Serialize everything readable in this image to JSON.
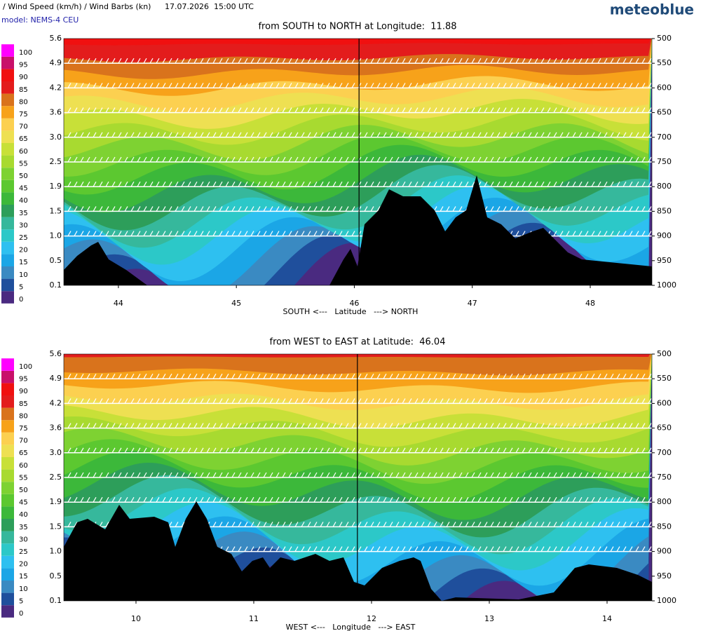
{
  "header": {
    "title": "/ Wind Speed (km/h) / Wind Barbs (kn)",
    "time": "17.07.2026  15:00 UTC",
    "model": "model: NEMS-4 CEU",
    "brand": "meteoblue"
  },
  "chart_data": [
    {
      "type": "contour",
      "title": "from SOUTH to NORTH at Longitude:  11.88",
      "x_label": "SOUTH <---   Latitude   ---> NORTH",
      "xlim": [
        43.537,
        48.523
      ],
      "xticks": [
        44,
        45,
        46,
        47,
        48
      ],
      "cross_line": 46.04,
      "ylim": [
        1000,
        500
      ],
      "yticks": [
        500,
        550,
        600,
        650,
        700,
        750,
        800,
        850,
        900,
        950,
        1000
      ],
      "altitude_labels": [
        "5.6",
        "4.9",
        "4.2",
        "3.6",
        "3.0",
        "2.5",
        "1.9",
        "1.5",
        "1.0",
        "0.5",
        "0.1"
      ],
      "colorbar": {
        "levels": [
          0,
          5,
          10,
          15,
          20,
          25,
          30,
          35,
          40,
          45,
          50,
          55,
          60,
          65,
          70,
          75,
          80,
          85,
          90,
          95,
          100
        ],
        "colors": [
          "#4a2a80",
          "#1f4f9c",
          "#3a8ac2",
          "#1ba6e6",
          "#2ec0f0",
          "#2cc8c8",
          "#36b89c",
          "#2d9e5a",
          "#3cb83a",
          "#5cc830",
          "#7ed232",
          "#a8da30",
          "#c8e038",
          "#eee052",
          "#fcd050",
          "#f7a21a",
          "#d9731c",
          "#e31c1c",
          "#f01010",
          "#c8106a",
          "#ff00ff"
        ]
      }
    },
    {
      "type": "contour",
      "title": "from WEST to EAST at Latitude:  46.04",
      "x_label": "WEST <---   Longitude   ---> EAST",
      "xlim": [
        9.387,
        14.381
      ],
      "xticks": [
        10,
        11,
        12,
        13,
        14
      ],
      "cross_line": 11.88,
      "ylim": [
        1000,
        500
      ],
      "yticks": [
        500,
        550,
        600,
        650,
        700,
        750,
        800,
        850,
        900,
        950,
        1000
      ],
      "altitude_labels": [
        "5.6",
        "4.9",
        "4.2",
        "3.6",
        "3.0",
        "2.5",
        "1.9",
        "1.5",
        "1.0",
        "0.5",
        "0.1"
      ],
      "colorbar": {
        "levels": [
          0,
          5,
          10,
          15,
          20,
          25,
          30,
          35,
          40,
          45,
          50,
          55,
          60,
          65,
          70,
          75,
          80,
          85,
          90,
          95,
          100
        ],
        "colors": [
          "#4a2a80",
          "#1f4f9c",
          "#3a8ac2",
          "#1ba6e6",
          "#2ec0f0",
          "#2cc8c8",
          "#36b89c",
          "#2d9e5a",
          "#3cb83a",
          "#5cc830",
          "#7ed232",
          "#a8da30",
          "#c8e038",
          "#eee052",
          "#fcd050",
          "#f7a21a",
          "#d9731c",
          "#e31c1c",
          "#f01010",
          "#c8106a",
          "#ff00ff"
        ]
      }
    }
  ]
}
